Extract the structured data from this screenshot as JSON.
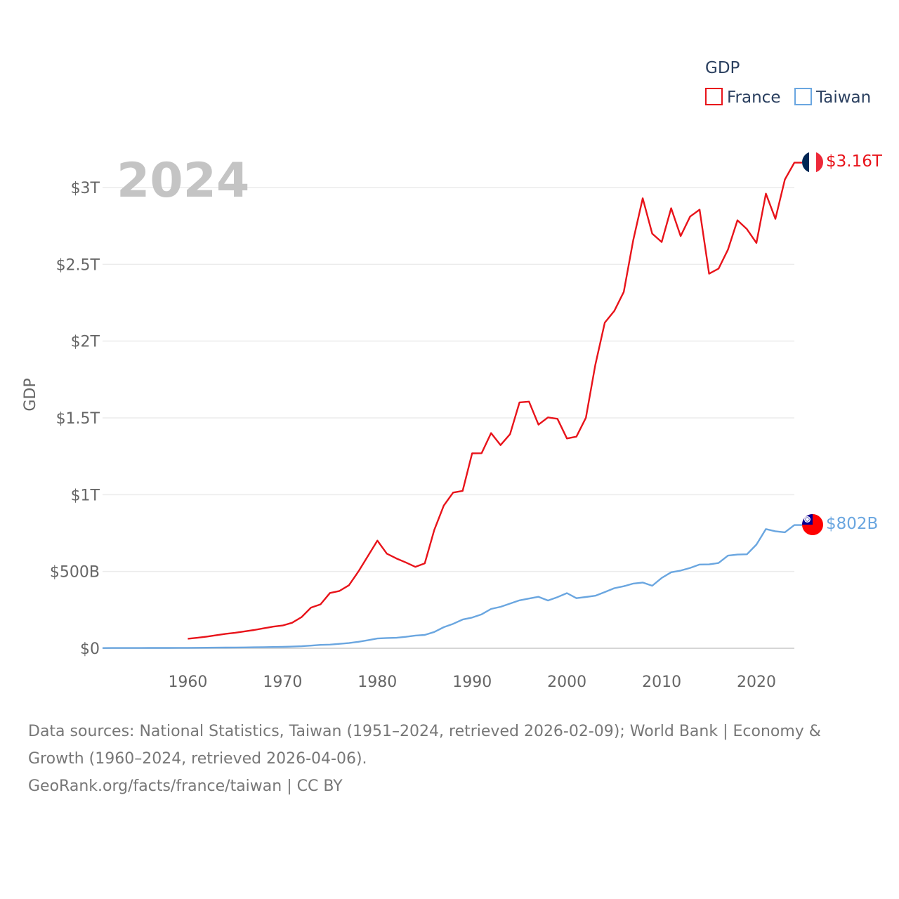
{
  "chart_data": {
    "type": "line",
    "year_label": "2024",
    "legend": {
      "title": "GDP",
      "position": "top-right",
      "entries": [
        "France",
        "Taiwan"
      ]
    },
    "yaxis": {
      "title": "GDP",
      "range": [
        -0.03,
        3.3
      ],
      "unit": "trillion USD",
      "ticks": [
        {
          "value": 0,
          "label": "$0"
        },
        {
          "value": 0.5,
          "label": "$500B"
        },
        {
          "value": 1,
          "label": "$1T"
        },
        {
          "value": 1.5,
          "label": "$1.5T"
        },
        {
          "value": 2,
          "label": "$2T"
        },
        {
          "value": 2.5,
          "label": "$2.5T"
        },
        {
          "value": 3,
          "label": "$3T"
        }
      ]
    },
    "xaxis": {
      "range": [
        1951,
        2024
      ],
      "ticks": [
        {
          "value": 1960,
          "label": "1960"
        },
        {
          "value": 1970,
          "label": "1970"
        },
        {
          "value": 1980,
          "label": "1980"
        },
        {
          "value": 1990,
          "label": "1990"
        },
        {
          "value": 2000,
          "label": "2000"
        },
        {
          "value": 2010,
          "label": "2010"
        },
        {
          "value": 2020,
          "label": "2020"
        }
      ]
    },
    "series": [
      {
        "name": "France",
        "color": "#e8131a",
        "end_label": "$3.16T",
        "flag": "france-flag",
        "x": [
          1960,
          1961,
          1962,
          1963,
          1964,
          1965,
          1966,
          1967,
          1968,
          1969,
          1970,
          1971,
          1972,
          1973,
          1974,
          1975,
          1976,
          1977,
          1978,
          1979,
          1980,
          1981,
          1982,
          1983,
          1984,
          1985,
          1986,
          1987,
          1988,
          1989,
          1990,
          1991,
          1992,
          1993,
          1994,
          1995,
          1996,
          1997,
          1998,
          1999,
          2000,
          2001,
          2002,
          2003,
          2004,
          2005,
          2006,
          2007,
          2008,
          2009,
          2010,
          2011,
          2012,
          2013,
          2014,
          2015,
          2016,
          2017,
          2018,
          2019,
          2020,
          2021,
          2022,
          2023,
          2024
        ],
        "values": [
          0.062,
          0.068,
          0.076,
          0.085,
          0.094,
          0.101,
          0.11,
          0.119,
          0.13,
          0.141,
          0.148,
          0.166,
          0.203,
          0.265,
          0.286,
          0.36,
          0.373,
          0.41,
          0.5,
          0.6,
          0.701,
          0.616,
          0.585,
          0.559,
          0.53,
          0.553,
          0.77,
          0.929,
          1.014,
          1.025,
          1.269,
          1.27,
          1.401,
          1.323,
          1.394,
          1.601,
          1.606,
          1.456,
          1.503,
          1.494,
          1.366,
          1.378,
          1.501,
          1.845,
          2.12,
          2.196,
          2.32,
          2.657,
          2.93,
          2.7,
          2.645,
          2.865,
          2.684,
          2.811,
          2.856,
          2.439,
          2.472,
          2.596,
          2.787,
          2.729,
          2.639,
          2.96,
          2.796,
          3.052,
          3.162
        ]
      },
      {
        "name": "Taiwan",
        "color": "#6aa6e0",
        "end_label": "$802B",
        "flag": "taiwan-flag",
        "x": [
          1951,
          1952,
          1953,
          1954,
          1955,
          1956,
          1957,
          1958,
          1959,
          1960,
          1961,
          1962,
          1963,
          1964,
          1965,
          1966,
          1967,
          1968,
          1969,
          1970,
          1971,
          1972,
          1973,
          1974,
          1975,
          1976,
          1977,
          1978,
          1979,
          1980,
          1981,
          1982,
          1983,
          1984,
          1985,
          1986,
          1987,
          1988,
          1989,
          1990,
          1991,
          1992,
          1993,
          1994,
          1995,
          1996,
          1997,
          1998,
          1999,
          2000,
          2001,
          2002,
          2003,
          2004,
          2005,
          2006,
          2007,
          2008,
          2009,
          2010,
          2011,
          2012,
          2013,
          2014,
          2015,
          2016,
          2017,
          2018,
          2019,
          2020,
          2021,
          2022,
          2023,
          2024
        ],
        "values": [
          0.0015,
          0.0017,
          0.0018,
          0.0019,
          0.002,
          0.0021,
          0.0023,
          0.0025,
          0.0027,
          0.0029,
          0.0032,
          0.0036,
          0.004,
          0.0045,
          0.005,
          0.0056,
          0.0063,
          0.0072,
          0.0082,
          0.0092,
          0.0108,
          0.0131,
          0.0175,
          0.0218,
          0.0238,
          0.0288,
          0.034,
          0.042,
          0.052,
          0.0636,
          0.0669,
          0.0682,
          0.0745,
          0.0826,
          0.087,
          0.106,
          0.137,
          0.159,
          0.187,
          0.2,
          0.221,
          0.256,
          0.27,
          0.291,
          0.312,
          0.324,
          0.335,
          0.311,
          0.333,
          0.359,
          0.326,
          0.334,
          0.342,
          0.366,
          0.391,
          0.404,
          0.421,
          0.428,
          0.407,
          0.458,
          0.495,
          0.506,
          0.523,
          0.545,
          0.546,
          0.555,
          0.603,
          0.61,
          0.612,
          0.675,
          0.776,
          0.762,
          0.755,
          0.802
        ]
      }
    ]
  },
  "footer": {
    "sources_line1": "Data sources: National Statistics, Taiwan (1951–2024, retrieved 2026-02-09); World Bank | Economy &",
    "sources_line2": "Growth (1960–2024, retrieved 2026-04-06).",
    "attribution": "GeoRank.org/facts/france/taiwan | CC BY"
  }
}
